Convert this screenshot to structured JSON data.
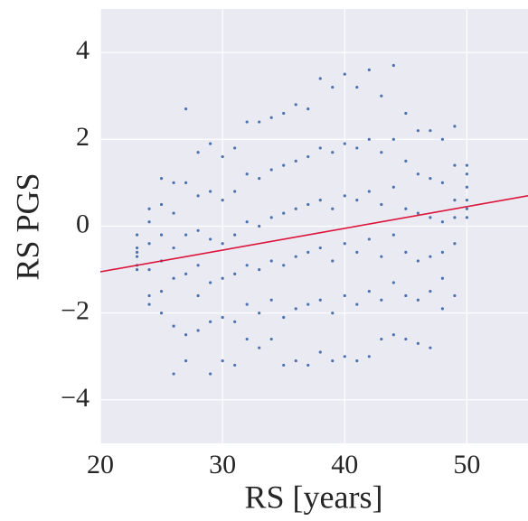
{
  "chart_data": {
    "type": "scatter",
    "xlabel": "RS [years]",
    "ylabel": "RS PGS",
    "xlim": [
      20,
      55
    ],
    "ylim": [
      -5,
      5
    ],
    "xticks": [
      20,
      30,
      40,
      50
    ],
    "yticks": [
      {
        "value": -4,
        "label": "−4"
      },
      {
        "value": -2,
        "label": "−2"
      },
      0,
      2,
      4
    ],
    "grid": true,
    "series": [
      {
        "color": "#4c72b0",
        "x": [
          23,
          23,
          23,
          23,
          23,
          23,
          24,
          24,
          24,
          24,
          24,
          24,
          25,
          25,
          25,
          25,
          25,
          25,
          26,
          26,
          26,
          26,
          26,
          26,
          27,
          27,
          27,
          27,
          27,
          27,
          28,
          28,
          28,
          28,
          28,
          28,
          29,
          29,
          29,
          29,
          29,
          29,
          30,
          30,
          30,
          30,
          30,
          30,
          31,
          31,
          31,
          31,
          31,
          31,
          32,
          32,
          32,
          32,
          32,
          32,
          33,
          33,
          33,
          33,
          33,
          33,
          34,
          34,
          34,
          34,
          34,
          34,
          35,
          35,
          35,
          35,
          35,
          35,
          36,
          36,
          36,
          36,
          36,
          36,
          37,
          37,
          37,
          37,
          37,
          37,
          38,
          38,
          38,
          38,
          38,
          38,
          39,
          39,
          39,
          39,
          39,
          39,
          40,
          40,
          40,
          40,
          40,
          40,
          41,
          41,
          41,
          41,
          41,
          41,
          42,
          42,
          42,
          42,
          42,
          42,
          43,
          43,
          43,
          43,
          43,
          43,
          44,
          44,
          44,
          44,
          44,
          44,
          45,
          45,
          45,
          45,
          45,
          45,
          46,
          46,
          46,
          46,
          46,
          46,
          47,
          47,
          47,
          47,
          47,
          47,
          48,
          48,
          48,
          48,
          48,
          48,
          49,
          49,
          49,
          49,
          49,
          49,
          50,
          50,
          50,
          50,
          50,
          50
        ],
        "values": [
          -0.5,
          -0.7,
          -0.9,
          -1.0,
          -0.6,
          -0.2,
          0.4,
          0.1,
          -0.4,
          -1.0,
          -1.6,
          -1.8,
          1.1,
          0.5,
          -0.2,
          -0.8,
          -1.5,
          -2.0,
          1.0,
          0.3,
          -0.5,
          -1.2,
          -2.3,
          -3.4,
          2.7,
          1.0,
          -0.2,
          -1.1,
          -2.5,
          -3.1,
          1.7,
          0.7,
          -0.1,
          -0.9,
          -1.6,
          -2.4,
          1.9,
          0.8,
          -0.3,
          -1.3,
          -2.2,
          -3.4,
          1.6,
          0.6,
          -0.4,
          -1.2,
          -2.1,
          -3.1,
          1.8,
          0.8,
          -0.2,
          -1.1,
          -2.2,
          -3.2,
          2.4,
          1.2,
          0.1,
          -0.9,
          -1.8,
          -2.6,
          2.4,
          1.1,
          0.0,
          -1.0,
          -2.0,
          -2.8,
          2.5,
          1.3,
          0.2,
          -0.8,
          -1.7,
          -2.6,
          2.6,
          1.4,
          0.3,
          -0.9,
          -2.1,
          -3.2,
          2.8,
          1.5,
          0.4,
          -0.7,
          -1.9,
          -3.1,
          2.7,
          1.6,
          0.5,
          -0.6,
          -1.8,
          -3.2,
          3.4,
          1.8,
          0.6,
          -0.5,
          -1.7,
          -2.9,
          3.2,
          1.7,
          0.4,
          -0.8,
          -2.0,
          -3.1,
          3.5,
          1.9,
          0.7,
          -0.4,
          -1.6,
          -3.0,
          3.2,
          1.8,
          0.6,
          -0.6,
          -1.8,
          -3.1,
          3.6,
          2.0,
          0.8,
          -0.3,
          -1.5,
          -3.0,
          3.0,
          1.7,
          0.5,
          -0.7,
          -1.7,
          -2.6,
          3.7,
          2.0,
          0.9,
          -0.2,
          -1.3,
          -2.5,
          2.6,
          1.5,
          0.4,
          -0.6,
          -1.6,
          -2.6,
          2.2,
          1.2,
          0.3,
          -0.8,
          -1.7,
          -2.7,
          2.2,
          1.1,
          0.2,
          -0.7,
          -1.5,
          -2.8,
          2.0,
          1.0,
          0.1,
          -0.6,
          -1.2,
          -1.9,
          2.3,
          1.4,
          0.6,
          0.2,
          -0.4,
          -1.6,
          1.4,
          1.2,
          0.9,
          0.6,
          0.4,
          0.2
        ]
      }
    ],
    "trend": {
      "x": [
        20,
        55
      ],
      "values": [
        -1.05,
        0.7
      ],
      "color": "#dc143c"
    }
  }
}
